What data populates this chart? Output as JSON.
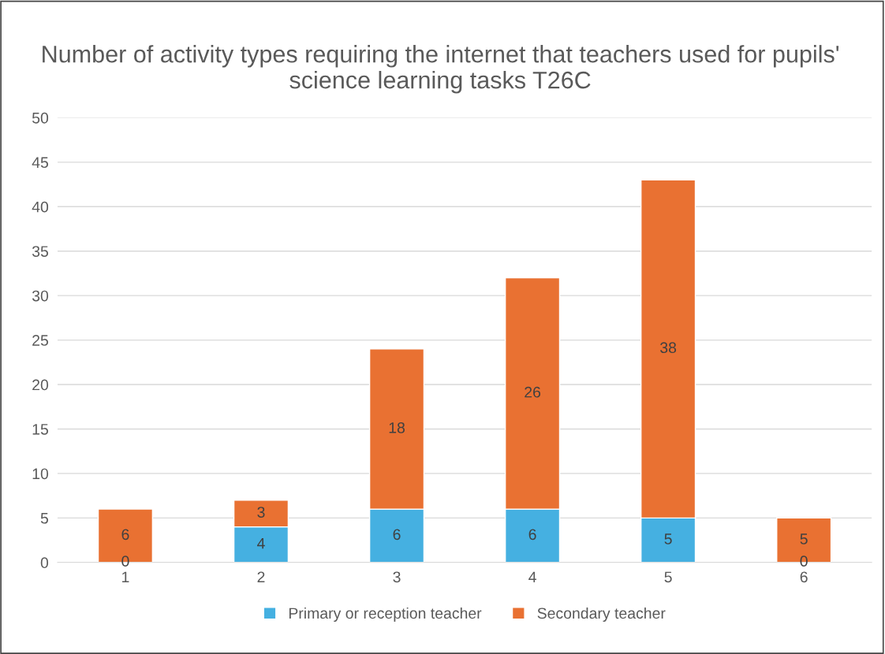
{
  "chart_data": {
    "type": "bar",
    "title": "Number of activity types requiring the internet that teachers used for pupils' science learning tasks T26C",
    "categories": [
      "1",
      "2",
      "3",
      "4",
      "5",
      "6"
    ],
    "series": [
      {
        "name": "Primary or reception teacher",
        "color": "#45b0e1",
        "values": [
          0,
          4,
          6,
          6,
          5,
          0
        ]
      },
      {
        "name": "Secondary teacher",
        "color": "#e97132",
        "values": [
          6,
          3,
          18,
          26,
          38,
          5
        ]
      }
    ],
    "stacked": true,
    "data_labels": true,
    "ylim": [
      0,
      50
    ],
    "yticks": [
      0,
      5,
      10,
      15,
      20,
      25,
      30,
      35,
      40,
      45,
      50
    ],
    "grid": "y",
    "legend": "bottom"
  }
}
